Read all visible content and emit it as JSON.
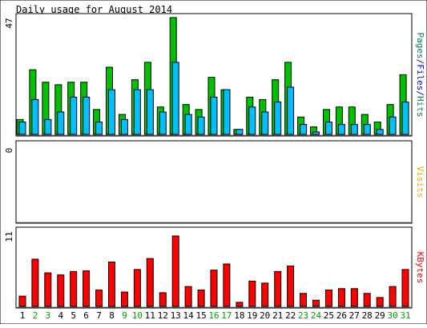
{
  "chart_data": {
    "type": "bar",
    "title": "Daily usage for August 2014",
    "categories": [
      "1",
      "2",
      "3",
      "4",
      "5",
      "6",
      "7",
      "8",
      "9",
      "10",
      "11",
      "12",
      "13",
      "14",
      "15",
      "16",
      "17",
      "18",
      "19",
      "20",
      "21",
      "22",
      "23",
      "24",
      "25",
      "26",
      "27",
      "28",
      "29",
      "30",
      "31"
    ],
    "weekend_days": [
      "2",
      "3",
      "9",
      "10",
      "16",
      "17",
      "23",
      "24",
      "30",
      "31"
    ],
    "panels": [
      {
        "name": "hits-files-pages",
        "ymax_label": "47",
        "ylim": [
          0,
          47
        ],
        "right_label": [
          {
            "text": "Pages",
            "color": "#00805c"
          },
          {
            "text": "/",
            "color": "#0000ff"
          },
          {
            "text": "Files",
            "color": "#0000ff"
          },
          {
            "text": "/",
            "color": "#0000ff"
          },
          {
            "text": "Hits",
            "color": "#00805c"
          }
        ],
        "series": [
          {
            "name": "Hits",
            "color": "#00c000",
            "values": [
              6,
              26,
              21,
              20,
              21,
              21,
              10,
              27,
              8,
              22,
              29,
              11,
              47,
              12,
              10,
              23,
              18,
              2,
              15,
              14,
              22,
              29,
              7,
              3,
              10,
              11,
              11,
              8,
              5,
              12,
              24
            ]
          },
          {
            "name": "Files",
            "color": "#00bfff",
            "values": [
              5,
              14,
              6,
              9,
              15,
              15,
              5,
              18,
              6,
              18,
              18,
              9,
              29,
              8,
              7,
              15,
              18,
              2,
              11,
              9,
              13,
              19,
              4,
              1,
              5,
              4,
              4,
              4,
              2,
              7,
              13
            ]
          }
        ]
      },
      {
        "name": "visits",
        "ymax_label": "0",
        "ylim": [
          0,
          1
        ],
        "right_label": [
          {
            "text": "Visits",
            "color": "#ffa500"
          }
        ],
        "series": [
          {
            "name": "Visits",
            "color": "#ffff00",
            "values": [
              0,
              0,
              0,
              0,
              0,
              0,
              0,
              0,
              0,
              0,
              0,
              0,
              0,
              0,
              0,
              0,
              0,
              0,
              0,
              0,
              0,
              0,
              0,
              0,
              0,
              0,
              0,
              0,
              0,
              0,
              0
            ]
          }
        ]
      },
      {
        "name": "kbytes",
        "ymax_label": "11",
        "ylim": [
          0,
          11
        ],
        "right_label": [
          {
            "text": "KBytes",
            "color": "#ff0000"
          }
        ],
        "series": [
          {
            "name": "KBytes",
            "color": "#ff0000",
            "values": [
              1.5,
              6.9,
              4.9,
              4.6,
              5.1,
              5.2,
              2.4,
              6.5,
              2.1,
              5.4,
              7.0,
              2.0,
              10.3,
              2.9,
              2.4,
              5.3,
              6.2,
              0.6,
              3.7,
              3.4,
              5.1,
              5.9,
              1.9,
              0.9,
              2.4,
              2.6,
              2.6,
              1.9,
              1.3,
              2.9,
              5.4
            ]
          }
        ]
      }
    ]
  }
}
